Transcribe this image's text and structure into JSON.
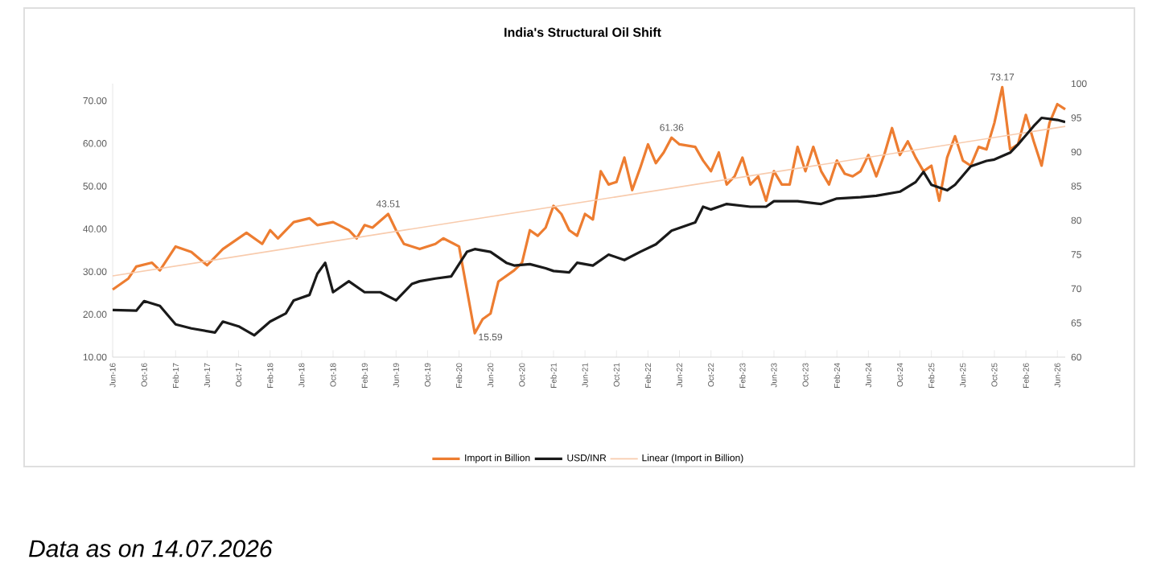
{
  "chart_data": {
    "type": "line",
    "title": "India's Structural Oil Shift",
    "xlim": [
      "2016-06",
      "2026-07"
    ],
    "xticks": [
      {
        "value": "2016-06",
        "label": "Jun-16"
      },
      {
        "value": "2016-10",
        "label": "Oct-16"
      },
      {
        "value": "2017-02",
        "label": "Feb-17"
      },
      {
        "value": "2017-06",
        "label": "Jun-17"
      },
      {
        "value": "2017-10",
        "label": "Oct-17"
      },
      {
        "value": "2018-02",
        "label": "Feb-18"
      },
      {
        "value": "2018-06",
        "label": "Jun-18"
      },
      {
        "value": "2018-10",
        "label": "Oct-18"
      },
      {
        "value": "2019-02",
        "label": "Feb-19"
      },
      {
        "value": "2019-06",
        "label": "Jun-19"
      },
      {
        "value": "2019-10",
        "label": "Oct-19"
      },
      {
        "value": "2020-02",
        "label": "Feb-20"
      },
      {
        "value": "2020-06",
        "label": "Jun-20"
      },
      {
        "value": "2020-10",
        "label": "Oct-20"
      },
      {
        "value": "2021-02",
        "label": "Feb-21"
      },
      {
        "value": "2021-06",
        "label": "Jun-21"
      },
      {
        "value": "2021-10",
        "label": "Oct-21"
      },
      {
        "value": "2022-02",
        "label": "Feb-22"
      },
      {
        "value": "2022-06",
        "label": "Jun-22"
      },
      {
        "value": "2022-10",
        "label": "Oct-22"
      },
      {
        "value": "2023-02",
        "label": "Feb-23"
      },
      {
        "value": "2023-06",
        "label": "Jun-23"
      },
      {
        "value": "2023-10",
        "label": "Oct-23"
      },
      {
        "value": "2024-02",
        "label": "Feb-24"
      },
      {
        "value": "2024-06",
        "label": "Jun-24"
      },
      {
        "value": "2024-10",
        "label": "Oct-24"
      },
      {
        "value": "2025-02",
        "label": "Feb-25"
      },
      {
        "value": "2025-06",
        "label": "Jun-25"
      },
      {
        "value": "2025-10",
        "label": "Oct-25"
      },
      {
        "value": "2026-02",
        "label": "Feb-26"
      },
      {
        "value": "2026-06",
        "label": "Jun-26"
      }
    ],
    "ylim": [
      10,
      74
    ],
    "yticks": [
      {
        "value": 10,
        "label": "10.00"
      },
      {
        "value": 20,
        "label": "20.00"
      },
      {
        "value": 30,
        "label": "30.00"
      },
      {
        "value": 40,
        "label": "40.00"
      },
      {
        "value": 50,
        "label": "50.00"
      },
      {
        "value": 60,
        "label": "60.00"
      },
      {
        "value": 70,
        "label": "70.00"
      }
    ],
    "y2lim": [
      60,
      100
    ],
    "y2ticks": [
      60,
      65,
      70,
      75,
      80,
      85,
      90,
      95,
      100
    ],
    "legend": "bottom",
    "series": [
      {
        "name": "Import in Billion",
        "color": "#ed7d31",
        "x": [
          "2016-06",
          "2016-08",
          "2016-09",
          "2016-11",
          "2016-12",
          "2017-02",
          "2017-04",
          "2017-06",
          "2017-08",
          "2017-11",
          "2018-01",
          "2018-02",
          "2018-03",
          "2018-05",
          "2018-07",
          "2018-08",
          "2018-10",
          "2018-12",
          "2019-01",
          "2019-02",
          "2019-03",
          "2019-05",
          "2019-06",
          "2019-07",
          "2019-09",
          "2019-11",
          "2019-12",
          "2020-02",
          "2020-04",
          "2020-05",
          "2020-06",
          "2020-07",
          "2020-09",
          "2020-10",
          "2020-11",
          "2020-12",
          "2021-01",
          "2021-02",
          "2021-03",
          "2021-04",
          "2021-05",
          "2021-06",
          "2021-07",
          "2021-08",
          "2021-09",
          "2021-10",
          "2021-11",
          "2021-12",
          "2022-01",
          "2022-02",
          "2022-03",
          "2022-04",
          "2022-05",
          "2022-06",
          "2022-08",
          "2022-09",
          "2022-10",
          "2022-11",
          "2022-12",
          "2023-01",
          "2023-02",
          "2023-03",
          "2023-04",
          "2023-05",
          "2023-06",
          "2023-07",
          "2023-08",
          "2023-09",
          "2023-10",
          "2023-11",
          "2023-12",
          "2024-01",
          "2024-02",
          "2024-03",
          "2024-04",
          "2024-05",
          "2024-06",
          "2024-07",
          "2024-08",
          "2024-09",
          "2024-10",
          "2024-11",
          "2024-12",
          "2025-01",
          "2025-02",
          "2025-03",
          "2025-04",
          "2025-05",
          "2025-06",
          "2025-07",
          "2025-08",
          "2025-09",
          "2025-10",
          "2025-11",
          "2025-12",
          "2026-01",
          "2026-02",
          "2026-03",
          "2026-04",
          "2026-05",
          "2026-06",
          "2026-07"
        ],
        "values": [
          25.8,
          28.4,
          31.2,
          32.1,
          30.3,
          35.9,
          34.6,
          31.5,
          35.3,
          39.1,
          36.5,
          39.7,
          37.8,
          41.6,
          42.5,
          40.9,
          41.6,
          39.7,
          37.8,
          40.9,
          40.3,
          43.51,
          39.7,
          36.5,
          35.3,
          36.5,
          37.8,
          35.9,
          15.59,
          18.9,
          20.2,
          27.7,
          30.3,
          32.1,
          39.7,
          38.4,
          40.3,
          45.4,
          43.5,
          39.7,
          38.4,
          43.5,
          42.2,
          53.5,
          50.4,
          51.0,
          56.7,
          49.1,
          54.2,
          59.8,
          55.4,
          57.9,
          61.36,
          59.8,
          59.2,
          56.0,
          53.5,
          57.9,
          50.4,
          52.3,
          56.7,
          50.4,
          52.3,
          46.6,
          53.5,
          50.4,
          50.4,
          59.2,
          53.5,
          59.2,
          53.5,
          50.4,
          56.0,
          52.9,
          52.3,
          53.5,
          57.3,
          52.3,
          57.3,
          63.6,
          57.3,
          60.5,
          56.7,
          53.5,
          54.8,
          46.6,
          56.7,
          61.7,
          56.0,
          54.8,
          59.2,
          58.6,
          64.8,
          73.17,
          58.6,
          59.8,
          66.7,
          60.5,
          54.8,
          64.8,
          69.2,
          68.0
        ]
      },
      {
        "name": "USD/INR",
        "color": "#1a1a1a",
        "axis": "y2",
        "x": [
          "2016-06",
          "2016-09",
          "2016-10",
          "2016-12",
          "2017-02",
          "2017-04",
          "2017-07",
          "2017-08",
          "2017-10",
          "2017-12",
          "2018-02",
          "2018-04",
          "2018-05",
          "2018-07",
          "2018-08",
          "2018-09",
          "2018-10",
          "2018-12",
          "2019-02",
          "2019-04",
          "2019-06",
          "2019-08",
          "2019-09",
          "2019-11",
          "2020-01",
          "2020-03",
          "2020-04",
          "2020-06",
          "2020-08",
          "2020-09",
          "2020-11",
          "2021-01",
          "2021-02",
          "2021-04",
          "2021-05",
          "2021-07",
          "2021-09",
          "2021-11",
          "2022-01",
          "2022-03",
          "2022-05",
          "2022-08",
          "2022-09",
          "2022-10",
          "2022-12",
          "2023-03",
          "2023-05",
          "2023-06",
          "2023-09",
          "2023-12",
          "2024-02",
          "2024-05",
          "2024-07",
          "2024-10",
          "2024-12",
          "2025-01",
          "2025-02",
          "2025-04",
          "2025-05",
          "2025-07",
          "2025-09",
          "2025-10",
          "2025-12",
          "2026-01",
          "2026-03",
          "2026-04",
          "2026-06",
          "2026-07"
        ],
        "values": [
          66.9,
          66.8,
          68.2,
          67.5,
          64.8,
          64.2,
          63.6,
          65.2,
          64.5,
          63.2,
          65.2,
          66.4,
          68.3,
          69.1,
          72.2,
          73.8,
          69.5,
          71.1,
          69.5,
          69.5,
          68.3,
          70.7,
          71.1,
          71.5,
          71.8,
          75.4,
          75.8,
          75.4,
          73.8,
          73.4,
          73.6,
          73.0,
          72.6,
          72.4,
          73.8,
          73.4,
          75.0,
          74.2,
          75.4,
          76.5,
          78.5,
          79.7,
          82.0,
          81.6,
          82.4,
          82.0,
          82.0,
          82.8,
          82.8,
          82.4,
          83.2,
          83.4,
          83.6,
          84.2,
          85.6,
          87.1,
          85.2,
          84.4,
          85.2,
          87.9,
          88.7,
          88.9,
          89.9,
          91.1,
          93.8,
          95.0,
          94.7,
          94.4
        ]
      },
      {
        "name": "Linear (Import in Billion)",
        "type": "line",
        "color": "#f8cbad",
        "x": [
          "2016-06",
          "2026-07"
        ],
        "values": [
          29.0,
          64.0
        ]
      }
    ],
    "annotations": [
      {
        "text": "43.51",
        "x": "2019-05",
        "y": 43.51
      },
      {
        "text": "15.59",
        "x": "2020-04",
        "y": 15.59
      },
      {
        "text": "61.36",
        "x": "2022-05",
        "y": 61.36
      },
      {
        "text": "73.17",
        "x": "2025-11",
        "y": 73.17
      },
      "Data as on 14.07.2026"
    ]
  }
}
